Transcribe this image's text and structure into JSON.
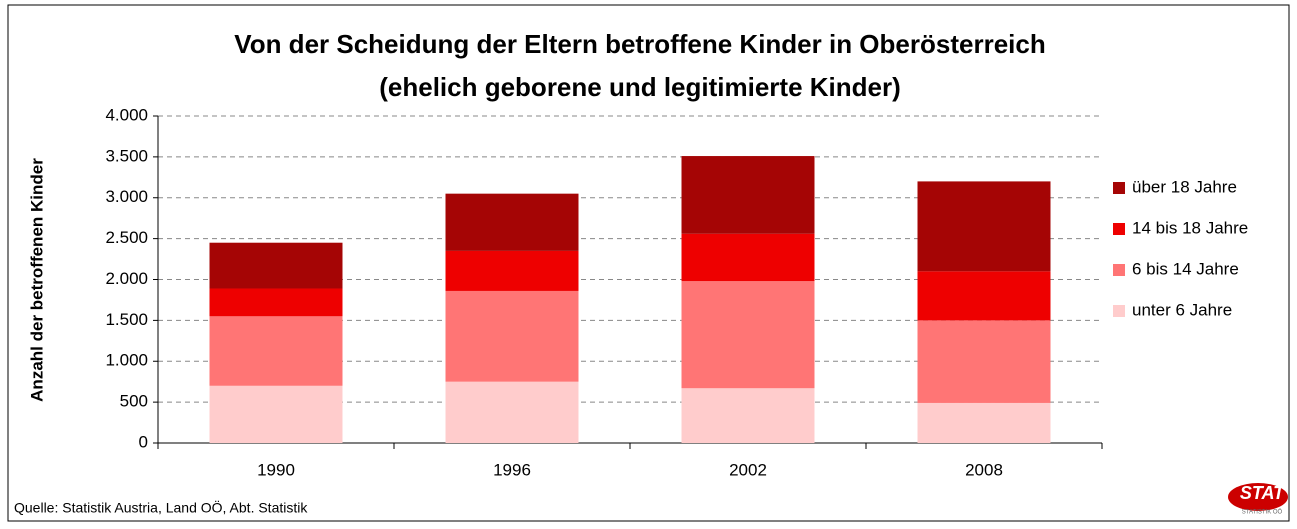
{
  "chart_data": {
    "type": "stacked_bar",
    "title": "Von der Scheidung der Eltern betroffene Kinder in Oberösterreich",
    "subtitle": "(ehelich geborene und legitimierte Kinder)",
    "y_label": "Anzahl der betroffenen Kinder",
    "categories": [
      "1990",
      "1996",
      "2002",
      "2008"
    ],
    "series": [
      {
        "name": "unter 6 Jahre",
        "color": "#ffcccc",
        "values": [
          700,
          750,
          670,
          490
        ]
      },
      {
        "name": "6 bis 14 Jahre",
        "color": "#ff7575",
        "values": [
          850,
          1110,
          1310,
          1010
        ]
      },
      {
        "name": "14 bis 18 Jahre",
        "color": "#ee0000",
        "values": [
          340,
          490,
          580,
          600
        ]
      },
      {
        "name": "über 18 Jahre",
        "color": "#a50505",
        "values": [
          560,
          700,
          950,
          1100
        ]
      }
    ],
    "ylim": [
      0,
      4000
    ],
    "yticks": [
      0,
      500,
      {
        "value": 1000,
        "label": "1.000"
      },
      {
        "value": 1500,
        "label": "1.500"
      },
      {
        "value": 2000,
        "label": "2.000"
      },
      {
        "value": 2500,
        "label": "2.500"
      },
      {
        "value": 3000,
        "label": "3.000"
      },
      {
        "value": 3500,
        "label": "3.500"
      },
      {
        "value": 4000,
        "label": "4.000"
      }
    ],
    "grid": true,
    "legend": "right",
    "source": "Quelle: Statistik Austria, Land OÖ, Abt. Statistik",
    "logo": "STAT",
    "logo_sub": "STATISTIK OÖ"
  }
}
